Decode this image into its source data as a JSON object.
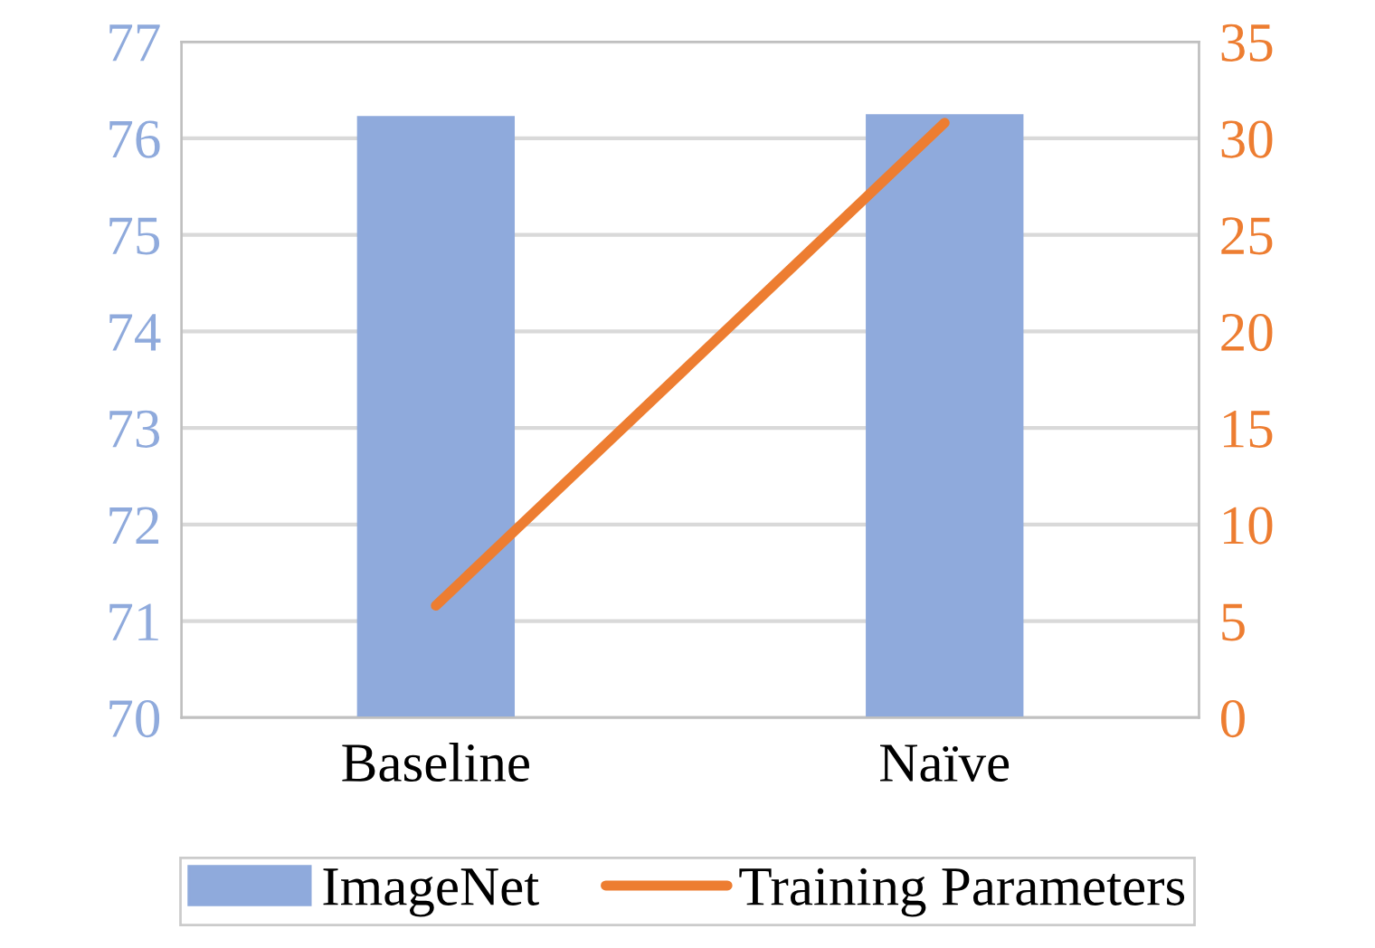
{
  "chart_data": {
    "type": "bar",
    "categories": [
      "Baseline",
      "Naïve"
    ],
    "series": [
      {
        "name": "ImageNet",
        "color": "#8faadc",
        "values": [
          76.23,
          76.25
        ]
      },
      {
        "name": "Training Parameters",
        "type": "line",
        "axis": "y2",
        "color": "#ed7d31",
        "values": [
          5.8,
          30.8
        ]
      }
    ],
    "ylim": [
      70,
      77
    ],
    "yticks": [
      70,
      71,
      72,
      73,
      74,
      75,
      76,
      77
    ],
    "y2lim": [
      0,
      35
    ],
    "y2ticks": [
      0,
      5,
      10,
      15,
      20,
      25,
      30,
      35
    ],
    "grid": "y",
    "legend": "bottom",
    "marker": "none",
    "line_style": "solid"
  }
}
